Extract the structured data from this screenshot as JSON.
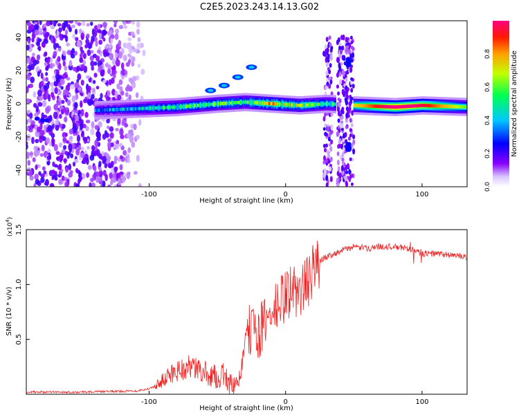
{
  "figure": {
    "title": "C2E5.2023.243.14.13.G02"
  },
  "chart_data": [
    {
      "type": "heatmap",
      "title": "C2E5.2023.243.14.13.G02",
      "xlabel": "Height of straight line (km)",
      "ylabel": "Frequency (Hz)",
      "xlim": [
        -190,
        133
      ],
      "ylim": [
        -50,
        50
      ],
      "xticks": [
        -100,
        0,
        100
      ],
      "yticks": [
        -40,
        -20,
        0,
        20,
        40
      ],
      "colorbar": {
        "label": "Normalized spectral amplitude",
        "range": [
          0,
          1
        ],
        "ticks": [
          "0.0",
          "0.2",
          "0.4",
          "0.6",
          "0.8"
        ],
        "colors": [
          "#ffffff",
          "#c8a8ff",
          "#7a00ff",
          "#0000ff",
          "#00d8ff",
          "#00ff60",
          "#c8ff00",
          "#ffb000",
          "#ff2000",
          "#ff0080"
        ]
      },
      "features": [
        {
          "name": "noise",
          "x_range": [
            -190,
            -105
          ],
          "freq_range": [
            -50,
            50
          ],
          "amplitude": 0.15
        },
        {
          "name": "carrier",
          "x": [
            -140,
            -110,
            -80,
            -50,
            -30,
            -10,
            10,
            30,
            50,
            80,
            100,
            133
          ],
          "freq": [
            -4,
            -3,
            -2,
            0,
            1,
            0,
            -1,
            0,
            -1,
            -2,
            -1,
            -2
          ],
          "amplitude": [
            0.3,
            0.4,
            0.5,
            0.55,
            0.55,
            0.7,
            0.6,
            0.5,
            0.6,
            0.9,
            0.8,
            0.5
          ]
        },
        {
          "name": "branch",
          "x": [
            -55,
            -45,
            -35,
            -25
          ],
          "freq": [
            8,
            11,
            16,
            22
          ],
          "amplitude": 0.3
        },
        {
          "name": "spikes",
          "x": [
            31,
            41,
            47
          ],
          "freq_range": [
            -50,
            40
          ],
          "amplitude": 0.2
        },
        {
          "name": "sidebands",
          "x": 46,
          "freq": [
            25,
            -26
          ],
          "amplitude": 0.3
        }
      ]
    },
    {
      "type": "line",
      "xlabel": "Height of straight line (km)",
      "ylabel": "SNR (10 * v/v)",
      "yscale_label": "(x10",
      "yscale_exp": "4",
      "xlim": [
        -190,
        133
      ],
      "ylim": [
        0,
        1.5
      ],
      "xticks": [
        -100,
        0,
        100
      ],
      "yticks": [
        "0.5",
        "1.0",
        "1.5"
      ],
      "color": "#ee2222",
      "series": [
        {
          "x": [
            -190,
            -150,
            -110,
            -100,
            -90,
            -80,
            -70,
            -60,
            -50,
            -45,
            -40,
            -35,
            -30,
            -25,
            -20,
            -15,
            -10,
            -5,
            0,
            5,
            10,
            15,
            20,
            25,
            30,
            35,
            40,
            45,
            50,
            60,
            70,
            80,
            90,
            95,
            100,
            110,
            120,
            133
          ],
          "y": [
            0.02,
            0.02,
            0.03,
            0.05,
            0.12,
            0.22,
            0.25,
            0.2,
            0.15,
            0.18,
            0.08,
            0.05,
            0.45,
            0.62,
            0.55,
            0.65,
            0.72,
            0.82,
            0.9,
            0.95,
            0.92,
            1.0,
            1.12,
            1.22,
            1.25,
            1.28,
            1.3,
            1.33,
            1.34,
            1.33,
            1.35,
            1.34,
            1.33,
            1.3,
            1.28,
            1.28,
            1.27,
            1.25
          ]
        }
      ]
    }
  ]
}
